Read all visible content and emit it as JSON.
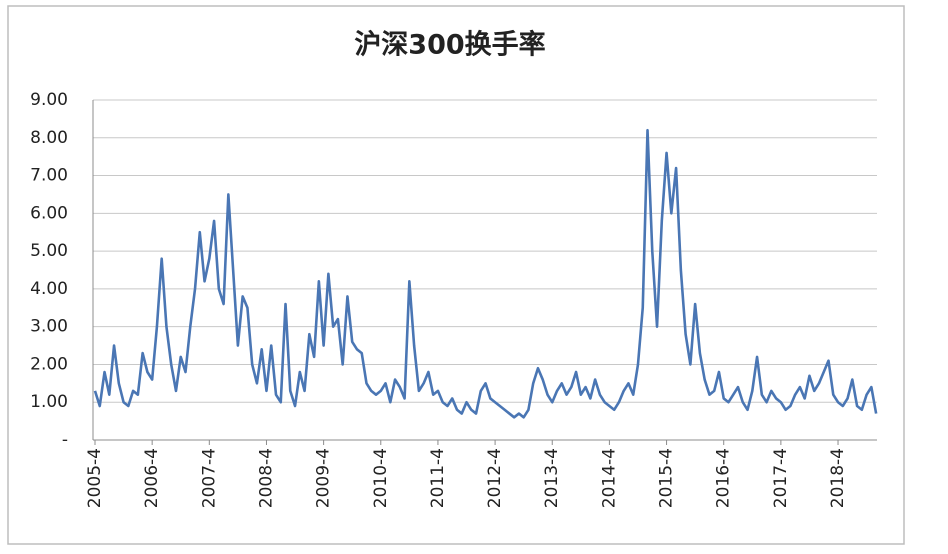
{
  "chart_data": {
    "type": "line",
    "title": "沪深300换手率",
    "categories": [
      "2005-4",
      null,
      null,
      null,
      null,
      null,
      null,
      null,
      null,
      null,
      null,
      null,
      "2006-4",
      null,
      null,
      null,
      null,
      null,
      null,
      null,
      null,
      null,
      null,
      null,
      "2007-4",
      null,
      null,
      null,
      null,
      null,
      null,
      null,
      null,
      null,
      null,
      null,
      "2008-4",
      null,
      null,
      null,
      null,
      null,
      null,
      null,
      null,
      null,
      null,
      null,
      "2009-4",
      null,
      null,
      null,
      null,
      null,
      null,
      null,
      null,
      null,
      null,
      null,
      "2010-4",
      null,
      null,
      null,
      null,
      null,
      null,
      null,
      null,
      null,
      null,
      null,
      "2011-4",
      null,
      null,
      null,
      null,
      null,
      null,
      null,
      null,
      null,
      null,
      null,
      "2012-4",
      null,
      null,
      null,
      null,
      null,
      null,
      null,
      null,
      null,
      null,
      null,
      "2013-4",
      null,
      null,
      null,
      null,
      null,
      null,
      null,
      null,
      null,
      null,
      null,
      "2014-4",
      null,
      null,
      null,
      null,
      null,
      null,
      null,
      null,
      null,
      null,
      null,
      "2015-4",
      null,
      null,
      null,
      null,
      null,
      null,
      null,
      null,
      null,
      null,
      null,
      "2016-4",
      null,
      null,
      null,
      null,
      null,
      null,
      null,
      null,
      null,
      null,
      null,
      "2017-4",
      null,
      null,
      null,
      null,
      null,
      null,
      null,
      null,
      null,
      null,
      null,
      "2018-4",
      null,
      null,
      null,
      null,
      null,
      null,
      null,
      null
    ],
    "series": [
      {
        "name": "沪深300换手率",
        "color": "#4a76b4",
        "values": [
          1.3,
          0.9,
          1.8,
          1.2,
          2.5,
          1.5,
          1.0,
          0.9,
          1.3,
          1.2,
          2.3,
          1.8,
          1.6,
          3.0,
          4.8,
          3.0,
          2.0,
          1.3,
          2.2,
          1.8,
          3.0,
          4.0,
          5.5,
          4.2,
          4.8,
          5.8,
          4.0,
          3.6,
          6.5,
          4.5,
          2.5,
          3.8,
          3.5,
          2.0,
          1.5,
          2.4,
          1.3,
          2.5,
          1.2,
          1.0,
          3.6,
          1.3,
          0.9,
          1.8,
          1.3,
          2.8,
          2.2,
          4.2,
          2.5,
          4.4,
          3.0,
          3.2,
          2.0,
          3.8,
          2.6,
          2.4,
          2.3,
          1.5,
          1.3,
          1.2,
          1.3,
          1.5,
          1.0,
          1.6,
          1.4,
          1.1,
          4.2,
          2.5,
          1.3,
          1.5,
          1.8,
          1.2,
          1.3,
          1.0,
          0.9,
          1.1,
          0.8,
          0.7,
          1.0,
          0.8,
          0.7,
          1.3,
          1.5,
          1.1,
          1.0,
          0.9,
          0.8,
          0.7,
          0.6,
          0.7,
          0.6,
          0.8,
          1.5,
          1.9,
          1.6,
          1.2,
          1.0,
          1.3,
          1.5,
          1.2,
          1.4,
          1.8,
          1.2,
          1.4,
          1.1,
          1.6,
          1.2,
          1.0,
          0.9,
          0.8,
          1.0,
          1.3,
          1.5,
          1.2,
          2.0,
          3.5,
          8.2,
          5.0,
          3.0,
          5.8,
          7.6,
          6.0,
          7.2,
          4.5,
          2.8,
          2.0,
          3.6,
          2.3,
          1.6,
          1.2,
          1.3,
          1.8,
          1.1,
          1.0,
          1.2,
          1.4,
          1.0,
          0.8,
          1.3,
          2.2,
          1.2,
          1.0,
          1.3,
          1.1,
          1.0,
          0.8,
          0.9,
          1.2,
          1.4,
          1.1,
          1.7,
          1.3,
          1.5,
          1.8,
          2.1,
          1.2,
          1.0,
          0.9,
          1.1,
          1.6,
          0.9,
          0.8,
          1.2,
          1.4,
          0.7
        ]
      }
    ],
    "ylim": [
      0,
      9
    ],
    "yticks": [
      {
        "value": 0,
        "label": "-"
      },
      {
        "value": 1,
        "label": "1.00"
      },
      {
        "value": 2,
        "label": "2.00"
      },
      {
        "value": 3,
        "label": "3.00"
      },
      {
        "value": 4,
        "label": "4.00"
      },
      {
        "value": 5,
        "label": "5.00"
      },
      {
        "value": 6,
        "label": "6.00"
      },
      {
        "value": 7,
        "label": "7.00"
      },
      {
        "value": 8,
        "label": "8.00"
      },
      {
        "value": 9,
        "label": "9.00"
      }
    ],
    "grid": true
  }
}
